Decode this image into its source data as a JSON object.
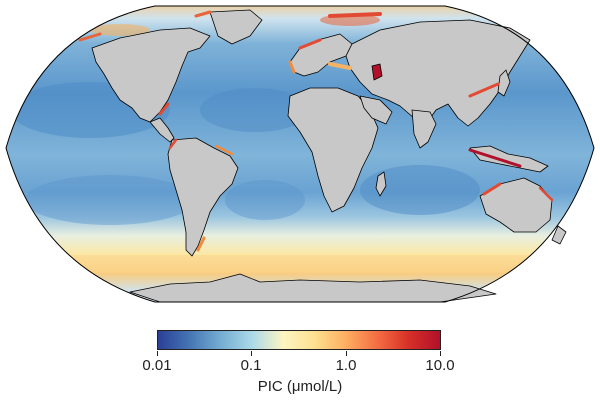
{
  "colors": {
    "ocean_base": "#7fb2d8",
    "land": "#c8c8c8",
    "coastline": "#000000",
    "scale_low": "#2b3f96",
    "scale_mid": "#fdf5c2",
    "scale_high": "#b1112a"
  },
  "map": {
    "projection": "robinson",
    "variable": "PIC"
  },
  "colorbar": {
    "scale": "log",
    "range": [
      0.01,
      10.0
    ],
    "ticks": [
      "0.01",
      "0.1",
      "1.0",
      "10.0"
    ],
    "label": "PIC (μmol/L)"
  }
}
